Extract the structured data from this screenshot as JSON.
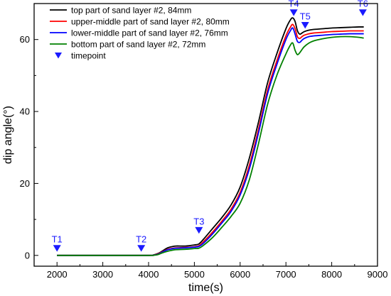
{
  "chart_data": {
    "type": "line",
    "xlabel": "time(s)",
    "ylabel": "dip angle(°)",
    "xlim": [
      1500,
      9000
    ],
    "ylim": [
      -3,
      70
    ],
    "x_ticks": [
      2000,
      3000,
      4000,
      5000,
      6000,
      7000,
      8000,
      9000
    ],
    "x_tick_labels": [
      "2000",
      "3000",
      "4000",
      "5000",
      "6000",
      "7000",
      "8000",
      "9000"
    ],
    "y_ticks": [
      0,
      20,
      40,
      60
    ],
    "y_tick_labels": [
      "0",
      "20",
      "40",
      "60"
    ],
    "grid": false,
    "legend_position": "top-left",
    "series": [
      {
        "name": "top part of sand layer #2, 84mm",
        "color": "#000000",
        "x": [
          2000,
          3000,
          4000,
          4100,
          4200,
          4300,
          4400,
          4500,
          4600,
          4800,
          5000,
          5100,
          5200,
          5400,
          5600,
          5800,
          6000,
          6200,
          6400,
          6600,
          6800,
          7000,
          7100,
          7150,
          7200,
          7250,
          7300,
          7350,
          7400,
          7500,
          7600,
          7800,
          8000,
          8200,
          8400,
          8600,
          8700
        ],
        "y": [
          0,
          0,
          0,
          0.1,
          0.5,
          1.2,
          2.0,
          2.4,
          2.6,
          2.6,
          2.9,
          3.2,
          4.5,
          7.5,
          10.5,
          14.0,
          19.0,
          27.0,
          37.0,
          48.0,
          56.0,
          63.0,
          65.5,
          66.0,
          65.0,
          62.5,
          61.5,
          61.8,
          62.2,
          62.6,
          62.8,
          63.0,
          63.2,
          63.3,
          63.4,
          63.5,
          63.5
        ]
      },
      {
        "name": "upper-middle part of sand layer #2, 80mm",
        "color": "#ff0000",
        "x": [
          2000,
          3000,
          4000,
          4100,
          4200,
          4300,
          4400,
          4500,
          4600,
          4800,
          5000,
          5100,
          5200,
          5400,
          5600,
          5800,
          6000,
          6200,
          6400,
          6600,
          6800,
          7000,
          7100,
          7150,
          7200,
          7250,
          7300,
          7350,
          7400,
          7500,
          7600,
          7800,
          8000,
          8200,
          8400,
          8600,
          8700
        ],
        "y": [
          0,
          0,
          0,
          0.05,
          0.4,
          1.0,
          1.6,
          1.9,
          2.1,
          2.2,
          2.4,
          2.7,
          3.8,
          6.5,
          9.5,
          12.8,
          17.5,
          25.0,
          35.0,
          46.0,
          54.0,
          61.0,
          63.5,
          64.2,
          63.0,
          60.8,
          60.3,
          60.8,
          61.2,
          61.6,
          61.8,
          62.0,
          62.2,
          62.3,
          62.4,
          62.4,
          62.4
        ]
      },
      {
        "name": "lower-middle part of sand layer #2, 76mm",
        "color": "#0000ff",
        "x": [
          2000,
          3000,
          4000,
          4100,
          4200,
          4300,
          4400,
          4500,
          4600,
          4800,
          5000,
          5100,
          5200,
          5400,
          5600,
          5800,
          6000,
          6200,
          6400,
          6600,
          6800,
          7000,
          7100,
          7150,
          7200,
          7250,
          7300,
          7350,
          7400,
          7500,
          7600,
          7800,
          8000,
          8200,
          8400,
          8600,
          8700
        ],
        "y": [
          0,
          0,
          0,
          0.05,
          0.3,
          0.9,
          1.5,
          1.8,
          2.0,
          2.1,
          2.3,
          2.5,
          3.4,
          6.0,
          9.0,
          12.2,
          16.8,
          24.0,
          34.0,
          45.0,
          53.0,
          60.0,
          62.5,
          63.2,
          61.5,
          59.5,
          59.2,
          59.8,
          60.3,
          60.8,
          61.0,
          61.2,
          61.4,
          61.5,
          61.6,
          61.6,
          61.6
        ]
      },
      {
        "name": "bottom part of sand layer #2, 72mm",
        "color": "#008000",
        "x": [
          2000,
          3000,
          4000,
          4100,
          4200,
          4300,
          4400,
          4500,
          4600,
          4800,
          5000,
          5100,
          5200,
          5400,
          5600,
          5800,
          6000,
          6200,
          6400,
          6600,
          6800,
          7000,
          7100,
          7150,
          7200,
          7250,
          7300,
          7350,
          7400,
          7500,
          7600,
          7800,
          8000,
          8200,
          8400,
          8600,
          8700
        ],
        "y": [
          0,
          0,
          0,
          0.03,
          0.2,
          0.7,
          1.1,
          1.4,
          1.6,
          1.7,
          1.9,
          2.0,
          2.8,
          5.0,
          7.8,
          10.8,
          14.5,
          21.0,
          31.0,
          42.0,
          50.0,
          56.0,
          58.5,
          59.0,
          57.0,
          55.8,
          56.3,
          57.2,
          58.0,
          59.0,
          59.6,
          60.2,
          60.6,
          60.8,
          60.8,
          60.6,
          60.4
        ]
      }
    ],
    "timepoints": {
      "name": "timepoint",
      "color": "#1a1aff",
      "labels": [
        "T1",
        "T2",
        "T3",
        "T4",
        "T5",
        "T6"
      ],
      "x": [
        2000,
        3840,
        5100,
        7170,
        7420,
        8680
      ],
      "y": [
        2.0,
        2.0,
        7.0,
        67.5,
        64.0,
        67.5
      ]
    }
  }
}
